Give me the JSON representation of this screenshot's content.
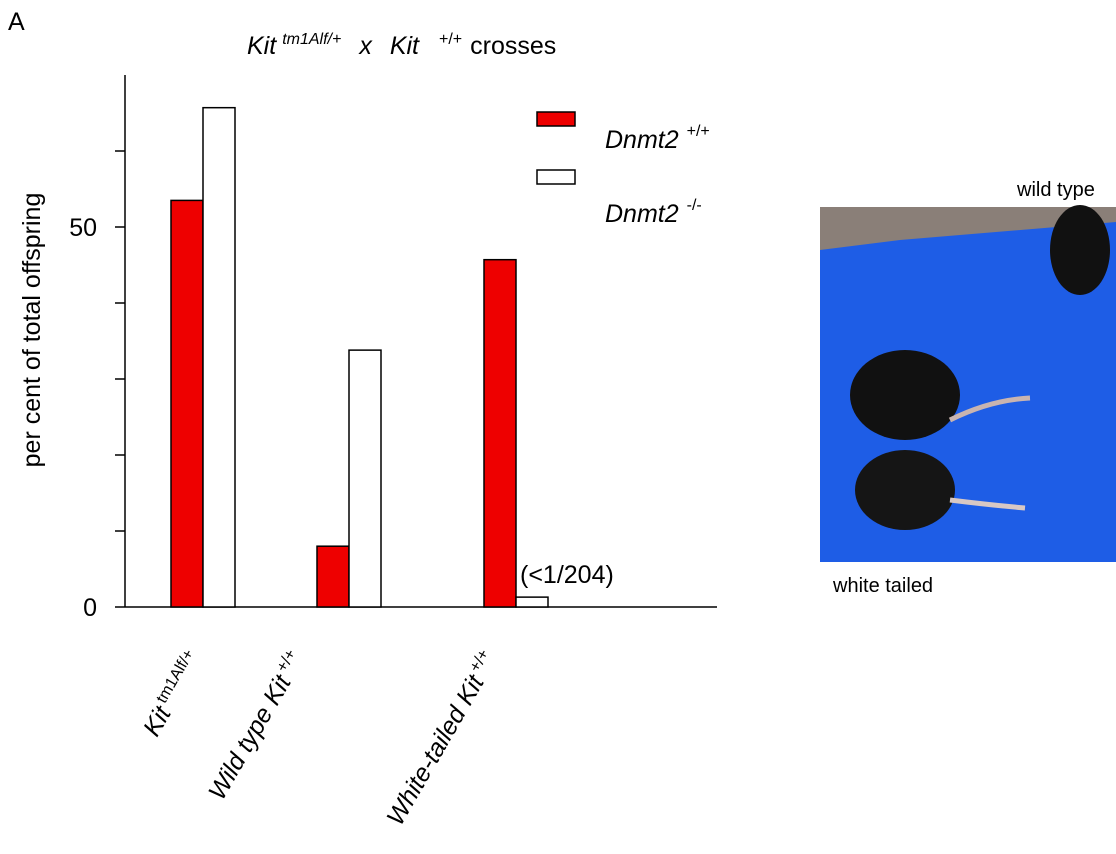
{
  "panel_label": "A",
  "chart_data": {
    "type": "bar",
    "title_parts": [
      "Kit",
      "tm1Alf/+",
      "x",
      "Kit",
      "+/+",
      "crosses"
    ],
    "y_label": "per cent of total offspring",
    "categories": [
      {
        "name": "Kit",
        "sup": "tm1Alf/+"
      },
      {
        "name": "Wild type Kit",
        "sup": "+/+"
      },
      {
        "name": "White-tailed Kit",
        "sup": "+/+"
      }
    ],
    "series": [
      {
        "name": "Dnmt2",
        "name_sup": "+/+",
        "color": "#ee0000",
        "values": [
          53.5,
          8,
          45.7
        ]
      },
      {
        "name": "Dnmt2",
        "name_sup": "-/-",
        "color": "#ffffff",
        "values": [
          65.7,
          33.8,
          1.3
        ]
      }
    ],
    "annotation": "(<1/204)",
    "ylim": [
      0,
      70
    ],
    "yticks": [
      0,
      50
    ],
    "yminor_ticks": [
      10,
      20,
      30,
      40,
      60
    ]
  },
  "photo": {
    "labels": [
      "wild type",
      "white tailed"
    ]
  }
}
